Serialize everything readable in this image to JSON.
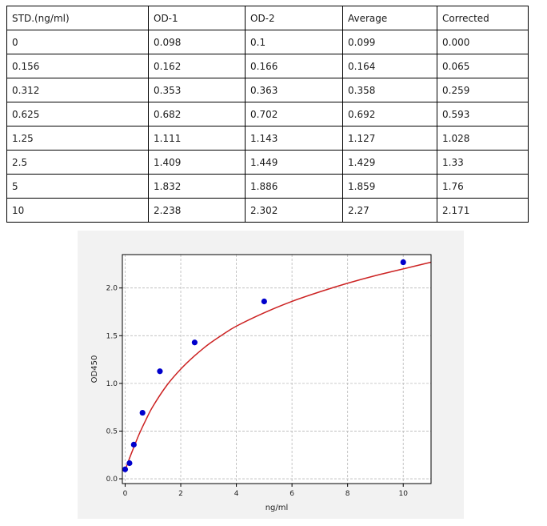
{
  "table": {
    "headers": [
      "STD.(ng/ml)",
      "OD-1",
      "OD-2",
      "Average",
      "Corrected"
    ],
    "rows": [
      [
        "0",
        "0.098",
        "0.1",
        "0.099",
        "0.000"
      ],
      [
        "0.156",
        "0.162",
        "0.166",
        "0.164",
        "0.065"
      ],
      [
        "0.312",
        "0.353",
        "0.363",
        "0.358",
        "0.259"
      ],
      [
        "0.625",
        "0.682",
        "0.702",
        "0.692",
        "0.593"
      ],
      [
        "1.25",
        "1.111",
        "1.143",
        "1.127",
        "1.028"
      ],
      [
        "2.5",
        "1.409",
        "1.449",
        "1.429",
        "1.33"
      ],
      [
        "5",
        "1.832",
        "1.886",
        "1.859",
        "1.76"
      ],
      [
        "10",
        "2.238",
        "2.302",
        "2.27",
        "2.171"
      ]
    ]
  },
  "chart_data": {
    "type": "scatter",
    "title": "",
    "xlabel": "ng/ml",
    "ylabel": "OD450",
    "xlim": [
      -0.1,
      11
    ],
    "ylim": [
      -0.05,
      2.35
    ],
    "xticks": [
      0,
      2,
      4,
      6,
      8,
      10
    ],
    "yticks": [
      0.0,
      0.5,
      1.0,
      1.5,
      2.0
    ],
    "xtick_labels": [
      "0",
      "2",
      "4",
      "6",
      "8",
      "10"
    ],
    "ytick_labels": [
      "0.0",
      "0.5",
      "1.0",
      "1.5",
      "2.0"
    ],
    "grid": true,
    "series": [
      {
        "kind": "points",
        "color": "#0000cc",
        "x": [
          0,
          0.156,
          0.312,
          0.625,
          1.25,
          2.5,
          5,
          10
        ],
        "y": [
          0.099,
          0.164,
          0.358,
          0.692,
          1.127,
          1.429,
          1.859,
          2.27
        ]
      },
      {
        "kind": "fit-curve",
        "color": "#cc2222",
        "x": [
          0,
          0.1,
          0.25,
          0.5,
          0.75,
          1,
          1.5,
          2,
          2.5,
          3,
          3.5,
          4,
          5,
          6,
          7,
          8,
          9,
          10,
          11
        ],
        "y": [
          0.09,
          0.17,
          0.285,
          0.465,
          0.62,
          0.76,
          0.98,
          1.15,
          1.29,
          1.41,
          1.51,
          1.6,
          1.74,
          1.86,
          1.96,
          2.05,
          2.13,
          2.2,
          2.27
        ]
      }
    ]
  }
}
